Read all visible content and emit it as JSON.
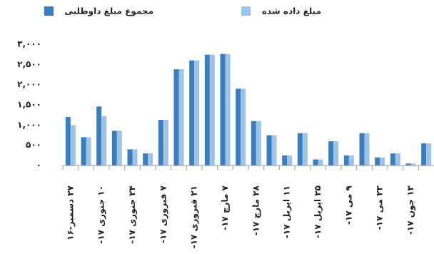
{
  "chart_data": {
    "type": "bar",
    "categories": [
      "۲۷ دسمبر-۱۶",
      null,
      "۱۰ جنوری ۱۷-",
      null,
      "۲۴ جنوری ۱۷-",
      null,
      "۷ فبروری ۱۷-",
      null,
      "۲۱ فبروری ۱۷-",
      null,
      "۷ مارچ ۱۷-",
      null,
      "۲۸ مارچ ۱۷-",
      null,
      "۱۱ اپریل ۱۷-",
      null,
      "۲۵ اپریل ۱۷-",
      null,
      "۹ می ۱۷-",
      null,
      "۲۳ می ۱۷-",
      null,
      "۱۳ جون ۱۷-",
      null
    ],
    "series": [
      {
        "name": "مجموع مبلغ داوطلبی",
        "color": "#3a7ebf",
        "values": [
          1200,
          700,
          1460,
          860,
          400,
          300,
          1130,
          2380,
          2600,
          2740,
          2760,
          1900,
          1100,
          750,
          250,
          800,
          150,
          600,
          250,
          800,
          200,
          300,
          50,
          550
        ]
      },
      {
        "name": "مبلغ داده شده",
        "color": "#9dc3e6",
        "values": [
          1000,
          700,
          1220,
          860,
          400,
          300,
          1130,
          2380,
          2600,
          2740,
          2760,
          1900,
          1100,
          750,
          250,
          800,
          150,
          600,
          250,
          800,
          200,
          300,
          50,
          550
        ]
      }
    ],
    "ylim": [
      0,
      3000
    ],
    "yticks": [
      {
        "value": 0,
        "label": "۰"
      },
      {
        "value": 500,
        "label": "۵۰۰"
      },
      {
        "value": 1000,
        "label": "۱,۰۰۰"
      },
      {
        "value": 1500,
        "label": "۱,۵۰۰"
      },
      {
        "value": 2000,
        "label": "۲,۰۰۰"
      },
      {
        "value": 2500,
        "label": "۲,۵۰۰"
      },
      {
        "value": 3000,
        "label": "۳,۰۰۰"
      }
    ]
  }
}
